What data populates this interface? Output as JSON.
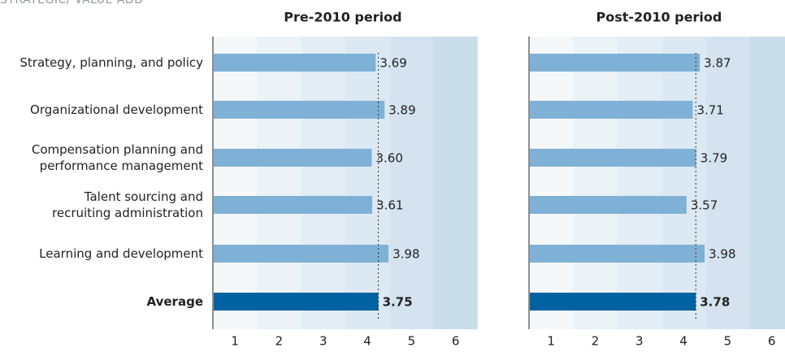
{
  "title": "STRATEGIC/ VALUE ADD",
  "chart_data": [
    {
      "type": "bar",
      "orientation": "horizontal",
      "title": "Pre-2010 period",
      "categories": [
        "Strategy, planning, and policy",
        "Organizational development",
        "Compensation planning and\nperformance management",
        "Talent sourcing and\nrecruiting administration",
        "Learning and development",
        "Average"
      ],
      "values": [
        3.69,
        3.89,
        3.6,
        3.61,
        3.98,
        3.75
      ],
      "value_labels": [
        "3.69",
        "3.89",
        "3.60",
        "3.61",
        "3.98",
        "3.75"
      ],
      "color": "#7fb1d6",
      "average_color": "#0062a0",
      "xlim": [
        0,
        6
      ],
      "xticks": [
        1,
        2,
        3,
        4,
        5,
        6
      ]
    },
    {
      "type": "bar",
      "orientation": "horizontal",
      "title": "Post-2010 period",
      "values": [
        3.87,
        3.71,
        3.79,
        3.57,
        3.98,
        3.78
      ],
      "value_labels": [
        "3.87",
        "3.71",
        "3.79",
        "3.57",
        "3.98",
        "3.78"
      ],
      "color": "#7fb1d6",
      "average_color": "#0062a0",
      "xlim": [
        0,
        6
      ],
      "xticks": [
        1,
        2,
        3,
        4,
        5,
        6
      ]
    }
  ]
}
